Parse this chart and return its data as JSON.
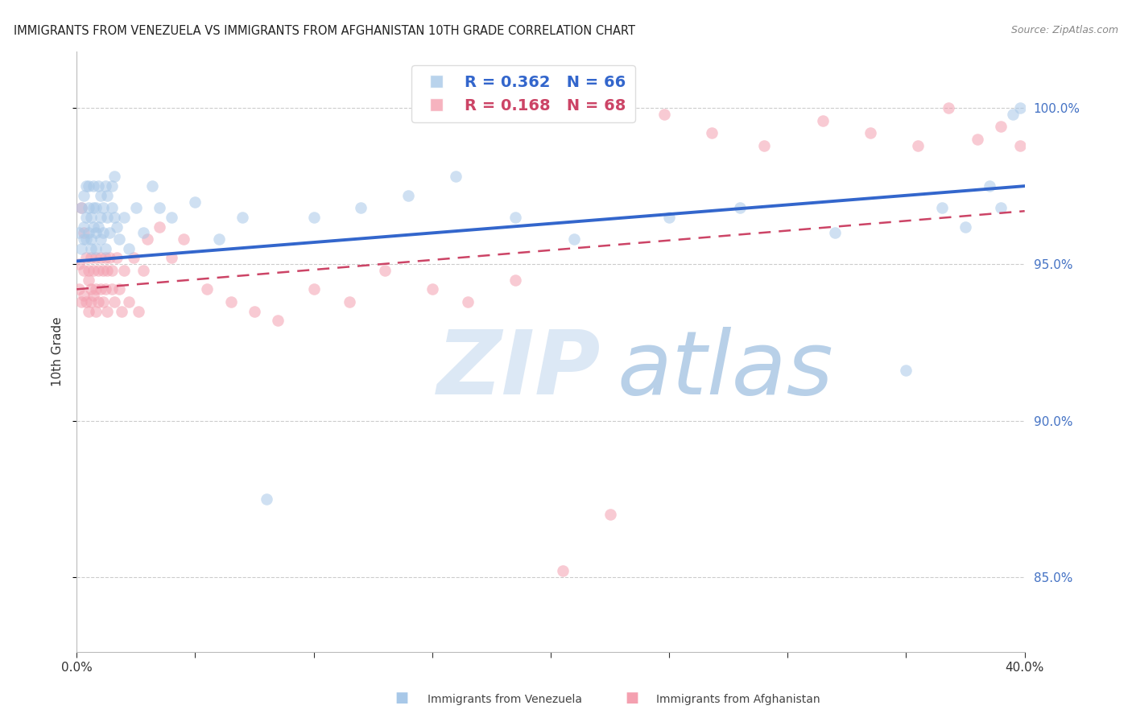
{
  "title": "IMMIGRANTS FROM VENEZUELA VS IMMIGRANTS FROM AFGHANISTAN 10TH GRADE CORRELATION CHART",
  "source": "Source: ZipAtlas.com",
  "ylabel": "10th Grade",
  "legend_blue_label": "Immigrants from Venezuela",
  "legend_pink_label": "Immigrants from Afghanistan",
  "r_blue": 0.362,
  "n_blue": 66,
  "r_pink": 0.168,
  "n_pink": 68,
  "xlim": [
    0.0,
    0.4
  ],
  "ylim": [
    0.826,
    1.018
  ],
  "yticks": [
    0.85,
    0.9,
    0.95,
    1.0
  ],
  "xticks": [
    0.0,
    0.05,
    0.1,
    0.15,
    0.2,
    0.25,
    0.3,
    0.35,
    0.4
  ],
  "blue_color": "#a8c8e8",
  "pink_color": "#f4a0b0",
  "blue_line_color": "#3366cc",
  "pink_line_color": "#cc4466",
  "watermark_zip": "ZIP",
  "watermark_atlas": "atlas",
  "watermark_color_zip": "#dce8f5",
  "watermark_color_atlas": "#b8d0e8",
  "blue_scatter_x": [
    0.001,
    0.002,
    0.002,
    0.003,
    0.003,
    0.003,
    0.004,
    0.004,
    0.004,
    0.005,
    0.005,
    0.005,
    0.006,
    0.006,
    0.006,
    0.007,
    0.007,
    0.007,
    0.008,
    0.008,
    0.008,
    0.009,
    0.009,
    0.01,
    0.01,
    0.01,
    0.011,
    0.011,
    0.012,
    0.012,
    0.013,
    0.013,
    0.014,
    0.015,
    0.015,
    0.016,
    0.016,
    0.017,
    0.018,
    0.02,
    0.022,
    0.025,
    0.028,
    0.032,
    0.035,
    0.04,
    0.05,
    0.06,
    0.07,
    0.08,
    0.1,
    0.12,
    0.14,
    0.16,
    0.185,
    0.21,
    0.25,
    0.28,
    0.32,
    0.35,
    0.365,
    0.375,
    0.385,
    0.39,
    0.395,
    0.398
  ],
  "blue_scatter_y": [
    0.96,
    0.968,
    0.955,
    0.962,
    0.972,
    0.958,
    0.965,
    0.958,
    0.975,
    0.96,
    0.968,
    0.975,
    0.958,
    0.965,
    0.955,
    0.962,
    0.968,
    0.975,
    0.96,
    0.955,
    0.968,
    0.962,
    0.975,
    0.965,
    0.958,
    0.972,
    0.968,
    0.96,
    0.975,
    0.955,
    0.965,
    0.972,
    0.96,
    0.968,
    0.975,
    0.965,
    0.978,
    0.962,
    0.958,
    0.965,
    0.955,
    0.968,
    0.96,
    0.975,
    0.968,
    0.965,
    0.97,
    0.958,
    0.965,
    0.875,
    0.965,
    0.968,
    0.972,
    0.978,
    0.965,
    0.958,
    0.965,
    0.968,
    0.96,
    0.916,
    0.968,
    0.962,
    0.975,
    0.968,
    0.998,
    1.0
  ],
  "pink_scatter_x": [
    0.001,
    0.001,
    0.002,
    0.002,
    0.003,
    0.003,
    0.003,
    0.004,
    0.004,
    0.005,
    0.005,
    0.005,
    0.006,
    0.006,
    0.006,
    0.007,
    0.007,
    0.008,
    0.008,
    0.008,
    0.009,
    0.009,
    0.01,
    0.01,
    0.011,
    0.011,
    0.012,
    0.012,
    0.013,
    0.013,
    0.014,
    0.015,
    0.015,
    0.016,
    0.017,
    0.018,
    0.019,
    0.02,
    0.022,
    0.024,
    0.026,
    0.028,
    0.03,
    0.035,
    0.04,
    0.045,
    0.055,
    0.065,
    0.075,
    0.085,
    0.1,
    0.115,
    0.13,
    0.15,
    0.165,
    0.185,
    0.205,
    0.225,
    0.248,
    0.268,
    0.29,
    0.315,
    0.335,
    0.355,
    0.368,
    0.38,
    0.39,
    0.398
  ],
  "pink_scatter_y": [
    0.95,
    0.942,
    0.968,
    0.938,
    0.948,
    0.94,
    0.96,
    0.938,
    0.952,
    0.945,
    0.935,
    0.948,
    0.942,
    0.952,
    0.938,
    0.948,
    0.94,
    0.952,
    0.942,
    0.935,
    0.948,
    0.938,
    0.952,
    0.942,
    0.948,
    0.938,
    0.952,
    0.942,
    0.948,
    0.935,
    0.952,
    0.948,
    0.942,
    0.938,
    0.952,
    0.942,
    0.935,
    0.948,
    0.938,
    0.952,
    0.935,
    0.948,
    0.958,
    0.962,
    0.952,
    0.958,
    0.942,
    0.938,
    0.935,
    0.932,
    0.942,
    0.938,
    0.948,
    0.942,
    0.938,
    0.945,
    0.852,
    0.87,
    0.998,
    0.992,
    0.988,
    0.996,
    0.992,
    0.988,
    1.0,
    0.99,
    0.994,
    0.988
  ],
  "blue_trend_x": [
    0.0,
    0.4
  ],
  "blue_trend_y": [
    0.951,
    0.975
  ],
  "pink_trend_x": [
    0.0,
    0.4
  ],
  "pink_trend_y": [
    0.942,
    0.967
  ]
}
